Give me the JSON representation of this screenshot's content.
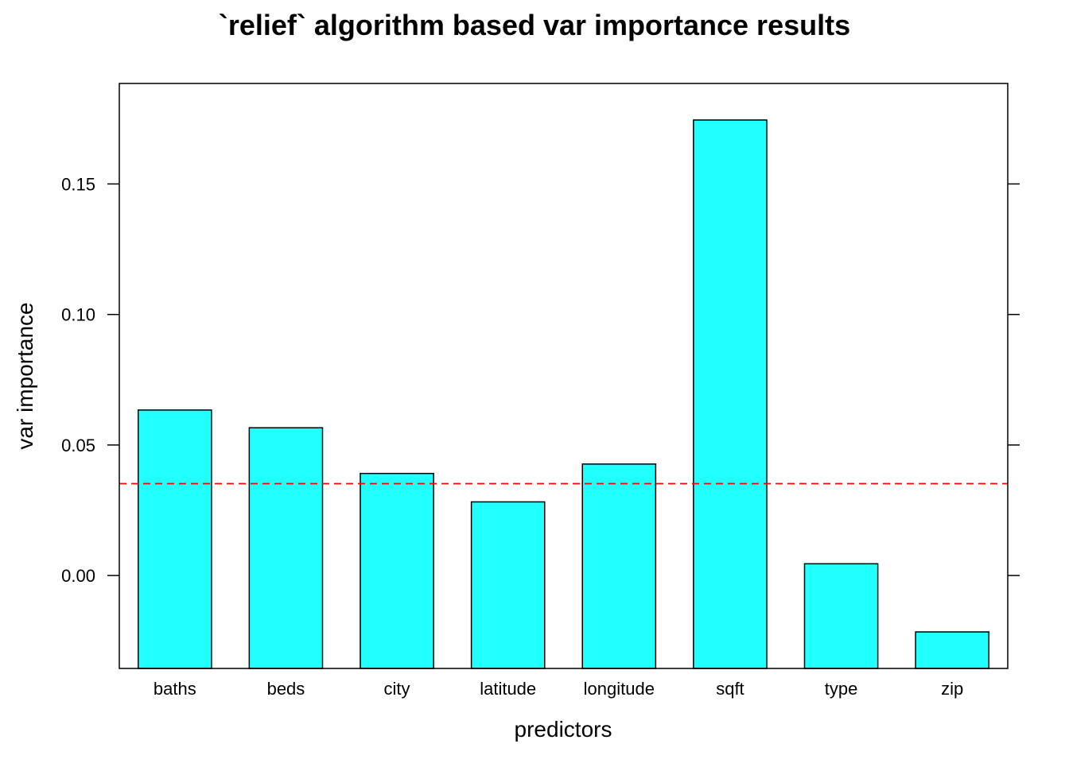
{
  "chart_data": {
    "type": "bar",
    "title": "`relief` algorithm based var importance results",
    "xlabel": "predictors",
    "ylabel": "var importance",
    "categories": [
      "baths",
      "beds",
      "city",
      "latitude",
      "longitude",
      "sqft",
      "type",
      "zip"
    ],
    "values": [
      0.0634,
      0.0566,
      0.0391,
      0.0282,
      0.0427,
      0.1745,
      0.0045,
      -0.0216
    ],
    "ylim": [
      -0.0356,
      0.1885
    ],
    "yticks": [
      0.0,
      0.05,
      0.1,
      0.15
    ],
    "ytick_labels": [
      "0.00",
      "0.05",
      "0.10",
      "0.15"
    ],
    "reference_line": {
      "value": 0.0352,
      "style": "dashed",
      "color": "#ff0000"
    },
    "grid": false,
    "bar_color": "#22ffff",
    "bar_border_color": "#000000"
  }
}
